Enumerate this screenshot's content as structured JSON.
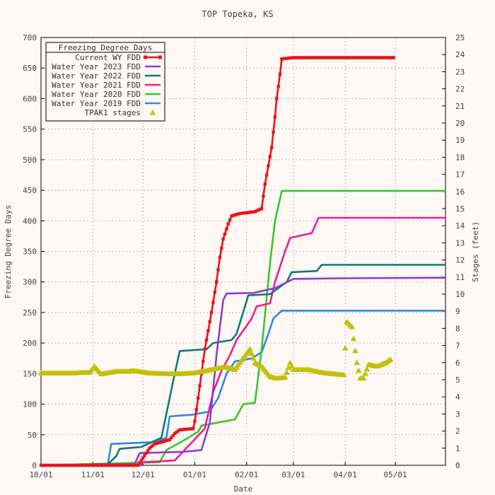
{
  "chart_data": {
    "type": "line",
    "title": "TOP Topeka, KS",
    "xlabel": "Date",
    "ylabel": "Freezing Degree Days",
    "y2label": "Stages (feet)",
    "x_range": [
      "2022-10-01",
      "2023-05-31"
    ],
    "ylim": [
      0,
      700
    ],
    "y2lim": [
      0,
      25
    ],
    "grid": true,
    "legend_position": "top-left",
    "legend_title": "Freezing Degree Days",
    "x_ticks": [
      "10/01",
      "11/01",
      "12/01",
      "01/01",
      "02/01",
      "03/01",
      "04/01",
      "05/01"
    ],
    "y_ticks": [
      "0",
      "50",
      "100",
      "150",
      "200",
      "250",
      "300",
      "350",
      "400",
      "450",
      "500",
      "550",
      "600",
      "650",
      "700"
    ],
    "y2_ticks": [
      "0",
      "1",
      "2",
      "3",
      "4",
      "5",
      "6",
      "7",
      "8",
      "9",
      "10",
      "11",
      "12",
      "13",
      "14",
      "15",
      "16",
      "17",
      "18",
      "19",
      "20",
      "21",
      "22",
      "23",
      "24",
      "25"
    ],
    "series": [
      {
        "name": "Current WY FDD",
        "color": "#e8151b",
        "marker": "square",
        "points": [
          [
            "2022-10-01",
            0
          ],
          [
            "2022-11-28",
            0
          ],
          [
            "2022-12-01",
            12
          ],
          [
            "2022-12-05",
            28
          ],
          [
            "2022-12-08",
            35
          ],
          [
            "2022-12-12",
            38
          ],
          [
            "2022-12-17",
            42
          ],
          [
            "2022-12-20",
            52
          ],
          [
            "2022-12-23",
            58
          ],
          [
            "2022-12-31",
            60
          ],
          [
            "2023-01-01",
            72
          ],
          [
            "2023-01-03",
            110
          ],
          [
            "2023-01-05",
            150
          ],
          [
            "2023-01-07",
            190
          ],
          [
            "2023-01-09",
            220
          ],
          [
            "2023-01-11",
            250
          ],
          [
            "2023-01-14",
            300
          ],
          [
            "2023-01-16",
            340
          ],
          [
            "2023-01-18",
            370
          ],
          [
            "2023-01-21",
            395
          ],
          [
            "2023-01-23",
            408
          ],
          [
            "2023-01-28",
            412
          ],
          [
            "2023-02-06",
            415
          ],
          [
            "2023-02-10",
            420
          ],
          [
            "2023-02-12",
            460
          ],
          [
            "2023-02-14",
            490
          ],
          [
            "2023-02-16",
            520
          ],
          [
            "2023-02-18",
            570
          ],
          [
            "2023-02-19",
            600
          ],
          [
            "2023-02-21",
            640
          ],
          [
            "2023-02-22",
            665
          ],
          [
            "2023-03-01",
            667
          ],
          [
            "2023-04-30",
            667
          ]
        ]
      },
      {
        "name": "Water Year 2023 FDD",
        "color": "#8f3bd0",
        "marker": "none",
        "points": [
          [
            "2022-10-01",
            0
          ],
          [
            "2022-11-26",
            2
          ],
          [
            "2022-11-29",
            20
          ],
          [
            "2022-12-25",
            22
          ],
          [
            "2023-01-05",
            25
          ],
          [
            "2023-01-10",
            70
          ],
          [
            "2023-01-14",
            180
          ],
          [
            "2023-01-18",
            270
          ],
          [
            "2023-01-20",
            281
          ],
          [
            "2023-02-05",
            282
          ],
          [
            "2023-02-18",
            290
          ],
          [
            "2023-03-01",
            305
          ],
          [
            "2023-03-31",
            306
          ],
          [
            "2023-05-31",
            307
          ]
        ]
      },
      {
        "name": "Water Year 2022 FDD",
        "color": "#0c7c78",
        "marker": "none",
        "points": [
          [
            "2022-10-01",
            0
          ],
          [
            "2022-11-10",
            2
          ],
          [
            "2022-11-15",
            15
          ],
          [
            "2022-11-17",
            27
          ],
          [
            "2022-11-30",
            30
          ],
          [
            "2022-12-12",
            45
          ],
          [
            "2022-12-20",
            150
          ],
          [
            "2022-12-23",
            187
          ],
          [
            "2023-01-08",
            190
          ],
          [
            "2023-01-12",
            200
          ],
          [
            "2023-01-23",
            205
          ],
          [
            "2023-01-26",
            215
          ],
          [
            "2023-01-31",
            260
          ],
          [
            "2023-02-02",
            278
          ],
          [
            "2023-02-15",
            280
          ],
          [
            "2023-02-25",
            300
          ],
          [
            "2023-02-28",
            316
          ],
          [
            "2023-03-15",
            318
          ],
          [
            "2023-03-18",
            328
          ],
          [
            "2023-05-31",
            328
          ]
        ]
      },
      {
        "name": "Water Year 2021 FDD",
        "color": "#ea1f8f",
        "marker": "none",
        "points": [
          [
            "2022-10-01",
            0
          ],
          [
            "2022-11-30",
            0
          ],
          [
            "2022-12-01",
            5
          ],
          [
            "2022-12-20",
            8
          ],
          [
            "2023-01-07",
            60
          ],
          [
            "2023-01-12",
            120
          ],
          [
            "2023-01-17",
            155
          ],
          [
            "2023-01-22",
            180
          ],
          [
            "2023-01-26",
            205
          ],
          [
            "2023-02-04",
            240
          ],
          [
            "2023-02-07",
            260
          ],
          [
            "2023-02-15",
            265
          ],
          [
            "2023-02-18",
            300
          ],
          [
            "2023-02-24",
            350
          ],
          [
            "2023-02-27",
            372
          ],
          [
            "2023-03-12",
            380
          ],
          [
            "2023-03-16",
            405
          ],
          [
            "2023-05-31",
            405
          ]
        ]
      },
      {
        "name": "Water Year 2020 FDD",
        "color": "#36c82e",
        "marker": "none",
        "points": [
          [
            "2022-10-01",
            0
          ],
          [
            "2022-12-11",
            5
          ],
          [
            "2022-12-15",
            25
          ],
          [
            "2022-12-25",
            40
          ],
          [
            "2023-01-03",
            55
          ],
          [
            "2023-01-05",
            65
          ],
          [
            "2023-01-25",
            75
          ],
          [
            "2023-01-30",
            100
          ],
          [
            "2023-02-06",
            102
          ],
          [
            "2023-02-10",
            190
          ],
          [
            "2023-02-15",
            330
          ],
          [
            "2023-02-18",
            400
          ],
          [
            "2023-02-22",
            449
          ],
          [
            "2023-05-31",
            449
          ]
        ]
      },
      {
        "name": "Water Year 2019 FDD",
        "color": "#2d8be3",
        "marker": "none",
        "points": [
          [
            "2022-10-01",
            0
          ],
          [
            "2022-11-10",
            2
          ],
          [
            "2022-11-12",
            35
          ],
          [
            "2022-12-08",
            38
          ],
          [
            "2022-12-15",
            45
          ],
          [
            "2022-12-17",
            80
          ],
          [
            "2022-12-31",
            83
          ],
          [
            "2023-01-10",
            88
          ],
          [
            "2023-01-15",
            110
          ],
          [
            "2023-01-20",
            150
          ],
          [
            "2023-01-25",
            170
          ],
          [
            "2023-02-04",
            175
          ],
          [
            "2023-02-10",
            185
          ],
          [
            "2023-02-14",
            215
          ],
          [
            "2023-02-17",
            240
          ],
          [
            "2023-02-22",
            253
          ],
          [
            "2023-05-31",
            253
          ]
        ]
      }
    ],
    "stage_series": {
      "name": "TPAK1 stages",
      "color": "#c2c00a",
      "marker": "triangle",
      "points": [
        [
          "2022-10-01",
          5.4
        ],
        [
          "2022-10-20",
          5.4
        ],
        [
          "2022-10-30",
          5.45
        ],
        [
          "2022-11-02",
          5.8
        ],
        [
          "2022-11-06",
          5.35
        ],
        [
          "2022-11-15",
          5.5
        ],
        [
          "2022-11-22",
          5.5
        ],
        [
          "2022-11-25",
          5.55
        ],
        [
          "2022-12-05",
          5.4
        ],
        [
          "2022-12-20",
          5.35
        ],
        [
          "2022-12-31",
          5.4
        ],
        [
          "2023-01-08",
          5.55
        ],
        [
          "2023-01-15",
          5.7
        ],
        [
          "2023-01-20",
          5.75
        ],
        [
          "2023-01-25",
          5.6
        ],
        [
          "2023-01-30",
          6.3
        ],
        [
          "2023-02-03",
          6.8
        ],
        [
          "2023-02-06",
          6.0
        ],
        [
          "2023-02-10",
          5.8
        ],
        [
          "2023-02-15",
          5.2
        ],
        [
          "2023-02-19",
          5.1
        ],
        [
          "2023-02-24",
          5.15
        ],
        [
          "2023-02-27",
          6.0
        ],
        [
          "2023-03-01",
          5.6
        ],
        [
          "2023-03-10",
          5.6
        ],
        [
          "2023-03-20",
          5.4
        ],
        [
          "2023-03-31",
          5.3
        ],
        [
          "2023-04-02",
          8.4
        ],
        [
          "2023-04-05",
          8.1
        ],
        [
          "2023-04-08",
          6.0
        ],
        [
          "2023-04-10",
          5.1
        ],
        [
          "2023-04-12",
          5.1
        ],
        [
          "2023-04-15",
          5.9
        ],
        [
          "2023-04-20",
          5.8
        ],
        [
          "2023-04-25",
          6.0
        ],
        [
          "2023-04-28",
          6.2
        ]
      ]
    }
  }
}
